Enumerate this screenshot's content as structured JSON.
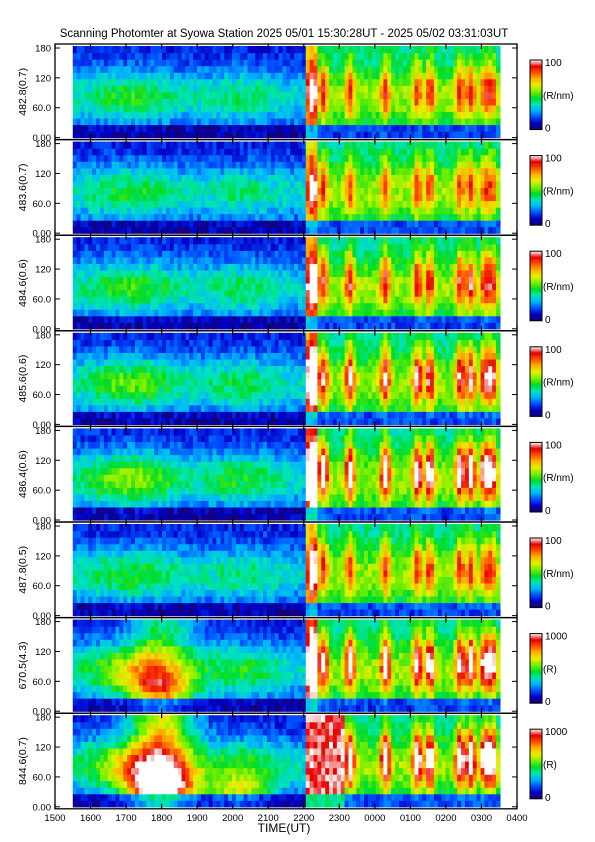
{
  "title": "Scanning Photomter at Syowa Station  2025 05/01 15:30:28UT - 2025 05/02 03:31:03UT",
  "xlabel": "TIME(UT)",
  "x_ticks": [
    "1500",
    "1600",
    "1700",
    "1800",
    "1900",
    "2000",
    "2100",
    "2200",
    "2300",
    "0000",
    "0100",
    "0200",
    "0300",
    "0400"
  ],
  "y_ticks": [
    "0.00",
    "60.0",
    "120",
    "180"
  ],
  "colorbar_label_order": [
    "100",
    "(R/nm)",
    "0"
  ],
  "colors": {
    "colormap": [
      "#1a0066",
      "#0000c8",
      "#0050ff",
      "#00b4ff",
      "#00e6b4",
      "#00dc28",
      "#78f000",
      "#e6f000",
      "#ffb400",
      "#ff5000",
      "#e60000",
      "#ffffff"
    ]
  },
  "chart_data": {
    "type": "heatmap",
    "x_range": [
      "1500",
      "0400"
    ],
    "y_range": [
      0,
      180
    ],
    "data_start": "15:30:28",
    "data_end": "03:31:03",
    "panels": [
      {
        "label": "482.8(0.7)",
        "cb_max": "100",
        "cb_min": "0",
        "unit": "(R/nm)",
        "intensity": 0.6
      },
      {
        "label": "483.6(0.7)",
        "cb_max": "100",
        "cb_min": "0",
        "unit": "(R/nm)",
        "intensity": 0.55
      },
      {
        "label": "484.6(0.6)",
        "cb_max": "100",
        "cb_min": "0",
        "unit": "(R/nm)",
        "intensity": 0.7
      },
      {
        "label": "485.6(0.6)",
        "cb_max": "100",
        "cb_min": "0",
        "unit": "(R/nm)",
        "intensity": 0.85
      },
      {
        "label": "486.4(0.6)",
        "cb_max": "100",
        "cb_min": "0",
        "unit": "(R/nm)",
        "intensity": 1.0
      },
      {
        "label": "487.8(0.5)",
        "cb_max": "100",
        "cb_min": "0",
        "unit": "(R/nm)",
        "intensity": 0.6
      },
      {
        "label": "670.5(4.3)",
        "cb_max": "1000",
        "cb_min": "0",
        "unit": "(R)",
        "intensity": 0.95
      },
      {
        "label": "844.6(0.7)",
        "cb_max": "1000",
        "cb_min": "0",
        "unit": "(R)",
        "intensity": 1.1
      }
    ]
  }
}
